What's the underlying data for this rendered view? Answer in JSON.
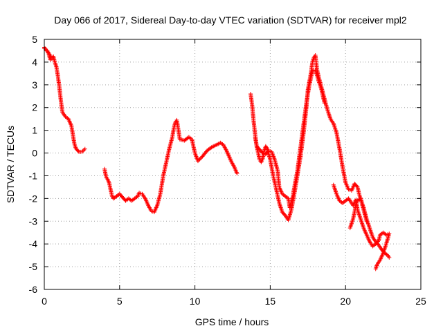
{
  "chart_data": {
    "type": "scatter",
    "title": "Day 066 of 2017, Sidereal Day-to-day VTEC variation (SDTVAR) for receiver mpl2",
    "xlabel": "GPS time / hours",
    "ylabel": "SDTVAR / TECUs",
    "xlim": [
      0,
      25
    ],
    "ylim": [
      -6,
      5
    ],
    "xticks": [
      0,
      5,
      10,
      15,
      20,
      25
    ],
    "yticks": [
      -6,
      -5,
      -4,
      -3,
      -2,
      -1,
      0,
      1,
      2,
      3,
      4,
      5
    ],
    "grid": true,
    "legend": "none",
    "marker": "+",
    "color": "#ff0000",
    "series": [
      {
        "segments": [
          [
            [
              0.0,
              4.6
            ],
            [
              0.1,
              4.55
            ],
            [
              0.2,
              4.5
            ],
            [
              0.3,
              4.35
            ],
            [
              0.4,
              4.1
            ],
            [
              0.5,
              4.15
            ],
            [
              0.6,
              4.25
            ],
            [
              0.7,
              4.0
            ],
            [
              0.8,
              3.8
            ],
            [
              0.9,
              3.4
            ],
            [
              1.0,
              2.9
            ],
            [
              1.1,
              2.3
            ],
            [
              1.2,
              1.8
            ],
            [
              1.4,
              1.6
            ],
            [
              1.6,
              1.5
            ],
            [
              1.8,
              1.2
            ],
            [
              1.9,
              0.8
            ],
            [
              2.0,
              0.4
            ],
            [
              2.1,
              0.2
            ],
            [
              2.3,
              0.05
            ],
            [
              2.5,
              0.05
            ],
            [
              2.7,
              0.18
            ]
          ],
          [
            [
              4.0,
              -0.7
            ],
            [
              4.1,
              -1.05
            ],
            [
              4.2,
              -1.15
            ],
            [
              4.3,
              -1.3
            ],
            [
              4.4,
              -1.6
            ],
            [
              4.5,
              -1.9
            ],
            [
              4.6,
              -2.0
            ],
            [
              4.8,
              -1.9
            ],
            [
              5.0,
              -1.8
            ],
            [
              5.2,
              -1.95
            ],
            [
              5.4,
              -2.1
            ],
            [
              5.6,
              -2.0
            ],
            [
              5.8,
              -2.1
            ],
            [
              6.0,
              -2.0
            ],
            [
              6.2,
              -1.9
            ],
            [
              6.3,
              -1.75
            ],
            [
              6.5,
              -1.8
            ],
            [
              6.7,
              -2.0
            ],
            [
              6.9,
              -2.3
            ],
            [
              7.1,
              -2.55
            ],
            [
              7.3,
              -2.6
            ],
            [
              7.5,
              -2.3
            ],
            [
              7.7,
              -1.8
            ],
            [
              7.9,
              -1.0
            ],
            [
              8.1,
              -0.4
            ],
            [
              8.3,
              0.2
            ],
            [
              8.5,
              0.7
            ],
            [
              8.6,
              1.1
            ],
            [
              8.7,
              1.35
            ],
            [
              8.8,
              1.45
            ],
            [
              9.0,
              0.6
            ],
            [
              9.3,
              0.55
            ],
            [
              9.6,
              0.7
            ],
            [
              9.8,
              0.6
            ],
            [
              10.0,
              0.0
            ],
            [
              10.2,
              -0.35
            ],
            [
              10.5,
              -0.15
            ],
            [
              10.8,
              0.1
            ],
            [
              11.1,
              0.25
            ],
            [
              11.4,
              0.35
            ],
            [
              11.7,
              0.45
            ],
            [
              11.9,
              0.35
            ],
            [
              12.1,
              0.1
            ],
            [
              12.4,
              -0.35
            ],
            [
              12.6,
              -0.6
            ],
            [
              12.8,
              -0.9
            ]
          ],
          [
            [
              13.7,
              2.6
            ],
            [
              13.8,
              2.1
            ],
            [
              13.9,
              1.4
            ],
            [
              14.0,
              0.8
            ],
            [
              14.1,
              0.3
            ],
            [
              14.2,
              0.0
            ],
            [
              14.3,
              -0.3
            ],
            [
              14.4,
              -0.4
            ],
            [
              14.5,
              -0.25
            ],
            [
              14.6,
              0.1
            ],
            [
              14.7,
              0.3
            ],
            [
              14.8,
              0.2
            ],
            [
              15.0,
              -0.3
            ],
            [
              15.2,
              -1.0
            ],
            [
              15.4,
              -1.6
            ],
            [
              15.6,
              -2.2
            ],
            [
              15.8,
              -2.6
            ],
            [
              16.0,
              -2.75
            ],
            [
              16.2,
              -2.95
            ],
            [
              16.4,
              -2.5
            ],
            [
              16.6,
              -1.8
            ],
            [
              16.8,
              -1.0
            ],
            [
              17.0,
              -0.2
            ],
            [
              17.2,
              0.8
            ],
            [
              17.4,
              2.0
            ],
            [
              17.5,
              2.8
            ],
            [
              17.7,
              3.5
            ],
            [
              17.8,
              4.0
            ],
            [
              17.9,
              4.2
            ],
            [
              18.0,
              4.3
            ],
            [
              18.1,
              3.7
            ],
            [
              18.2,
              3.4
            ],
            [
              18.4,
              2.9
            ],
            [
              18.6,
              2.4
            ],
            [
              18.8,
              1.9
            ],
            [
              19.0,
              1.5
            ],
            [
              19.2,
              1.3
            ],
            [
              19.4,
              0.9
            ],
            [
              19.6,
              0.2
            ],
            [
              19.8,
              -0.6
            ],
            [
              20.0,
              -1.3
            ],
            [
              20.2,
              -1.6
            ],
            [
              20.4,
              -1.65
            ],
            [
              20.6,
              -1.35
            ],
            [
              20.8,
              -1.5
            ],
            [
              20.9,
              -1.8
            ],
            [
              21.0,
              -2.0
            ],
            [
              21.2,
              -2.4
            ],
            [
              21.4,
              -2.9
            ],
            [
              21.6,
              -3.3
            ],
            [
              21.8,
              -3.7
            ],
            [
              22.0,
              -3.9
            ],
            [
              22.2,
              -4.05
            ],
            [
              22.4,
              -4.25
            ],
            [
              22.6,
              -4.4
            ],
            [
              22.8,
              -4.5
            ],
            [
              22.9,
              -4.6
            ]
          ],
          [
            [
              14.0,
              0.7
            ],
            [
              14.1,
              0.3
            ],
            [
              14.3,
              0.15
            ],
            [
              14.5,
              0.0
            ],
            [
              14.7,
              -0.05
            ],
            [
              14.9,
              0.1
            ],
            [
              15.1,
              0.05
            ],
            [
              15.3,
              -0.3
            ],
            [
              15.5,
              -0.8
            ],
            [
              15.6,
              -1.5
            ],
            [
              15.8,
              -1.8
            ],
            [
              16.0,
              -1.9
            ],
            [
              16.2,
              -2.0
            ],
            [
              16.3,
              -2.4
            ],
            [
              16.5,
              -1.9
            ],
            [
              16.6,
              -1.5
            ],
            [
              16.8,
              -0.8
            ],
            [
              17.0,
              0.2
            ],
            [
              17.2,
              1.2
            ],
            [
              17.4,
              2.2
            ],
            [
              17.6,
              3.0
            ],
            [
              17.8,
              3.6
            ],
            [
              18.0,
              3.65
            ],
            [
              18.2,
              3.2
            ],
            [
              18.4,
              2.8
            ],
            [
              18.6,
              2.2
            ]
          ],
          [
            [
              19.2,
              -1.4
            ],
            [
              19.4,
              -1.8
            ],
            [
              19.6,
              -2.1
            ],
            [
              19.8,
              -2.2
            ],
            [
              20.0,
              -2.1
            ],
            [
              20.2,
              -2.0
            ],
            [
              20.4,
              -2.2
            ],
            [
              20.5,
              -2.3
            ],
            [
              20.7,
              -2.05
            ],
            [
              20.8,
              -2.5
            ],
            [
              21.0,
              -2.9
            ],
            [
              21.2,
              -3.3
            ],
            [
              21.4,
              -3.6
            ],
            [
              21.6,
              -3.9
            ],
            [
              21.8,
              -4.1
            ],
            [
              22.0,
              -4.0
            ],
            [
              22.2,
              -3.85
            ],
            [
              22.3,
              -3.6
            ],
            [
              22.5,
              -3.5
            ],
            [
              22.7,
              -3.6
            ],
            [
              22.9,
              -3.55
            ],
            [
              22.7,
              -4.0
            ],
            [
              22.5,
              -4.4
            ],
            [
              22.3,
              -4.7
            ],
            [
              22.1,
              -4.9
            ],
            [
              22.0,
              -5.1
            ]
          ],
          [
            [
              20.3,
              -3.3
            ],
            [
              20.4,
              -3.1
            ],
            [
              20.5,
              -2.9
            ],
            [
              20.6,
              -2.6
            ],
            [
              20.7,
              -2.2
            ],
            [
              20.8,
              -2.1
            ],
            [
              21.0,
              -2.0
            ],
            [
              21.2,
              -2.5
            ],
            [
              21.4,
              -3.0
            ]
          ],
          [
            [
              0.0,
              4.65
            ],
            [
              0.15,
              4.5
            ],
            [
              0.3,
              4.4
            ],
            [
              0.45,
              4.2
            ]
          ]
        ]
      }
    ]
  }
}
